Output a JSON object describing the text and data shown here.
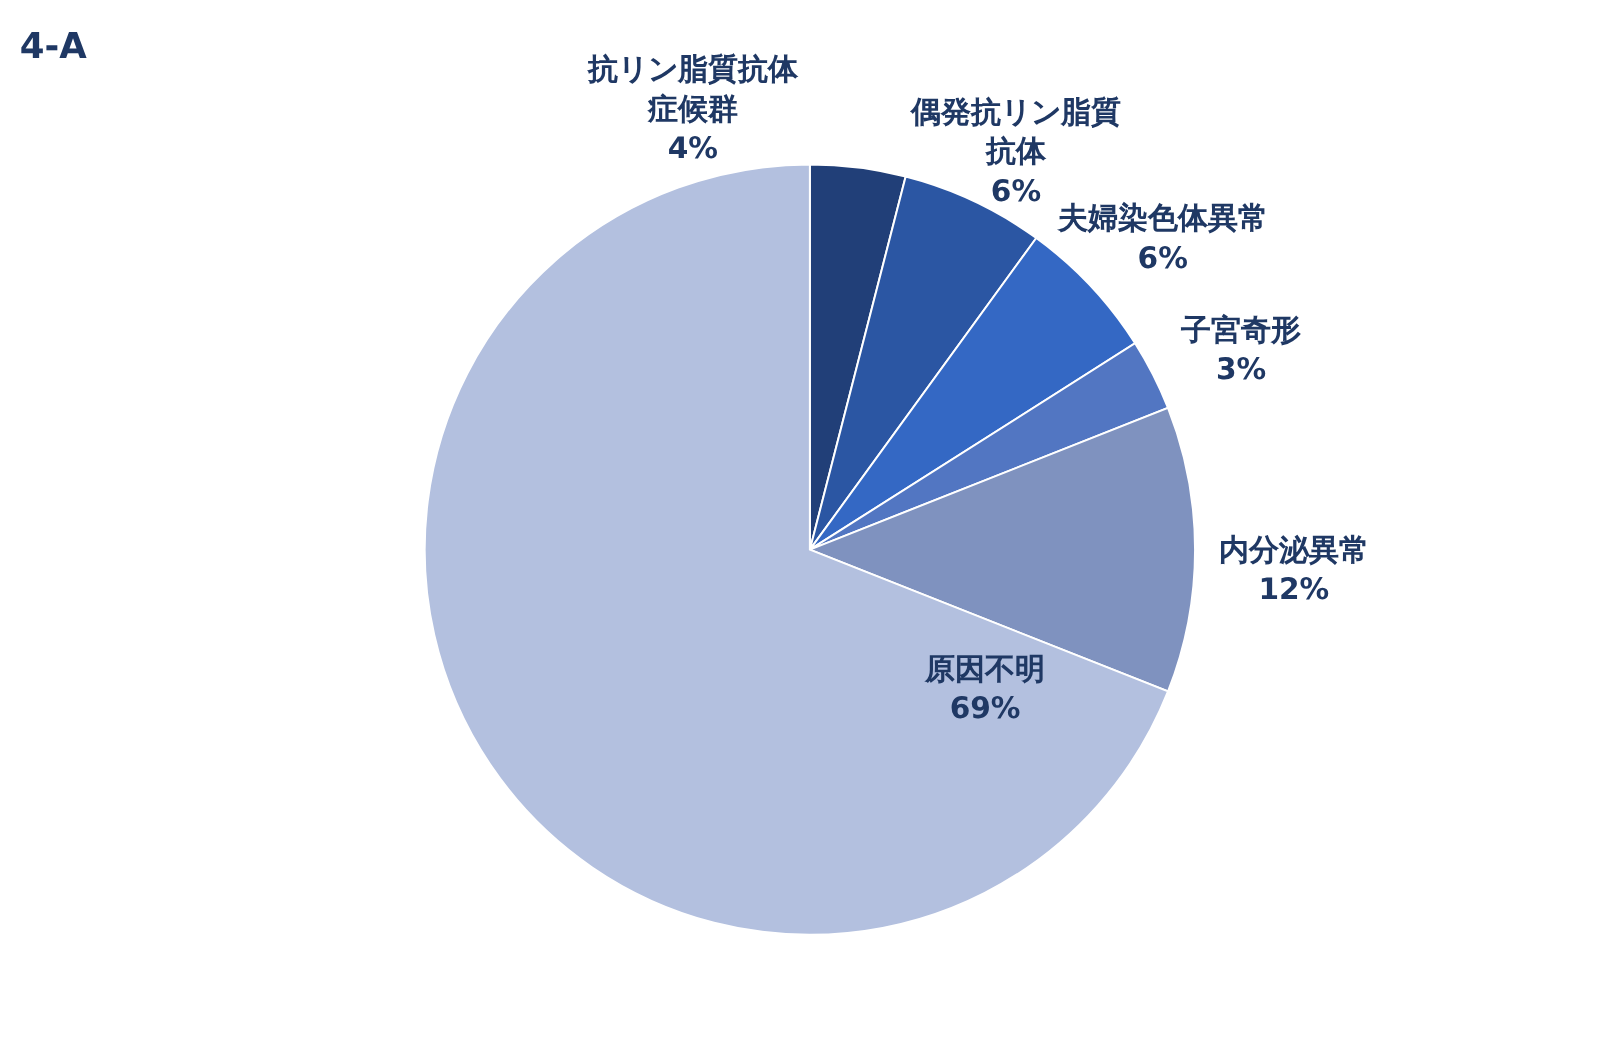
{
  "chart_data": {
    "type": "pie",
    "title": "4-A",
    "categories": [
      "抗リン脂質抗体症候群",
      "偶発抗リン脂質抗体",
      "夫婦染色体異常",
      "子宮奇形",
      "内分泌異常",
      "原因不明"
    ],
    "values": [
      4,
      6,
      6,
      3,
      12,
      69
    ],
    "value_labels": [
      "4%",
      "6%",
      "6%",
      "3%",
      "12%",
      "69%"
    ],
    "colors": [
      "#213f78",
      "#2b56a3",
      "#3468c4",
      "#5276c2",
      "#7f92bf",
      "#b3c0df"
    ]
  }
}
